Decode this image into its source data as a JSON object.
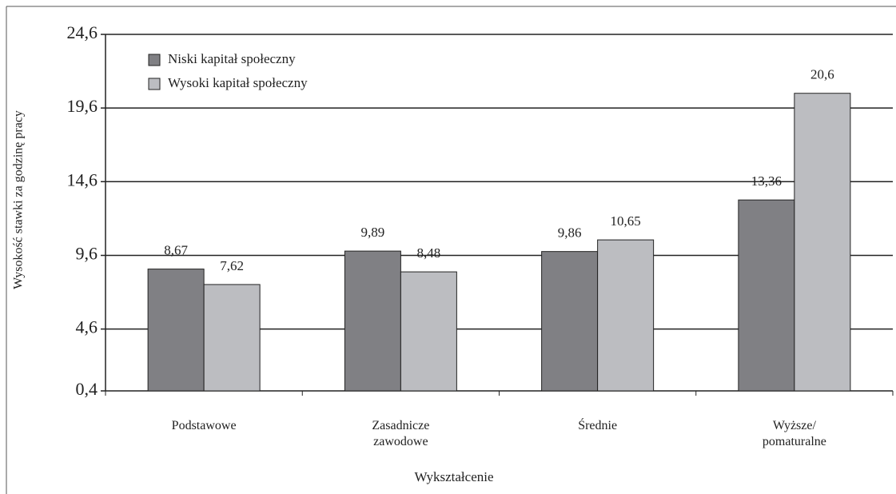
{
  "chart_data": {
    "type": "bar",
    "x_label": "Wykształcenie",
    "y_label": "Wysokość stawki za godzinę pracy",
    "categories": [
      "Podstawowe",
      "Zasadnicze zawodowe",
      "Średnie",
      "Wyższe/ pomaturalne"
    ],
    "series": [
      {
        "name": "Niski kapitał społeczny",
        "color": "#808084",
        "values": [
          8.67,
          9.89,
          9.86,
          13.36
        ],
        "value_labels": [
          "8,67",
          "9,89",
          "9,86",
          "13,36"
        ]
      },
      {
        "name": "Wysoki kapitał społeczny",
        "color": "#bcbdc1",
        "values": [
          7.62,
          8.48,
          10.65,
          20.6
        ],
        "value_labels": [
          "7,62",
          "8,48",
          "10,65",
          "20,6"
        ]
      }
    ],
    "ylim": [
      0.4,
      24.6
    ],
    "yticks": [
      {
        "value": 0.4,
        "label": "0,4"
      },
      {
        "value": 4.6,
        "label": "4,6"
      },
      {
        "value": 9.6,
        "label": "9,6"
      },
      {
        "value": 14.6,
        "label": "14,6"
      },
      {
        "value": 19.6,
        "label": "19,6"
      },
      {
        "value": 24.6,
        "label": "24,6"
      }
    ],
    "grid": true,
    "legend": "top-left"
  }
}
